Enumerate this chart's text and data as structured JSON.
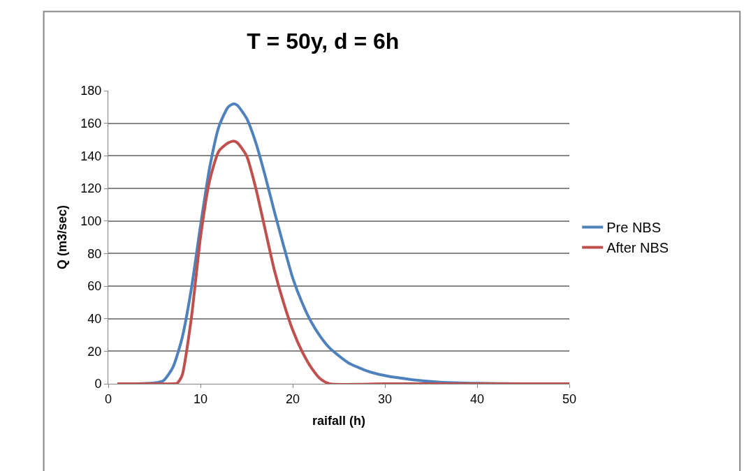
{
  "chart_data": {
    "type": "line",
    "title": "T = 50y, d = 6h",
    "xlabel": "raifall (h)",
    "ylabel": "Q (m3/sec)",
    "xlim": [
      0,
      50
    ],
    "xticks": [
      0,
      10,
      20,
      30,
      40,
      50
    ],
    "ylim": [
      0,
      180
    ],
    "yticks": [
      0,
      20,
      40,
      60,
      80,
      100,
      120,
      140,
      160,
      180
    ],
    "grid": "y",
    "legend": "right",
    "marker": "none",
    "line_style": "solid",
    "series": [
      {
        "name": "Pre NBS",
        "color": "#4f81bd",
        "x": [
          1,
          3,
          5,
          6,
          7,
          8,
          9,
          10,
          11,
          12,
          13,
          13.6,
          14,
          15,
          16,
          17,
          18,
          19,
          20,
          21,
          22,
          23,
          24,
          26,
          28,
          30,
          33,
          36,
          40,
          45,
          50
        ],
        "values": [
          0,
          0,
          0.5,
          2,
          10,
          28,
          58,
          97,
          133,
          158,
          170,
          172,
          171,
          163,
          148,
          128,
          106,
          85,
          65,
          50,
          38,
          29,
          22,
          13,
          8,
          5,
          2.5,
          1,
          0.3,
          0,
          0
        ]
      },
      {
        "name": "After NBS",
        "color": "#c0504d",
        "x": [
          1,
          5,
          7,
          7.5,
          8,
          9,
          10,
          11,
          12,
          13,
          13.6,
          14,
          15,
          16,
          17,
          18,
          19,
          20,
          21,
          22,
          23,
          24,
          30,
          40,
          50
        ],
        "values": [
          0,
          0,
          0,
          0.5,
          5,
          40,
          90,
          125,
          143,
          148,
          149,
          148,
          140,
          120,
          95,
          70,
          50,
          33,
          20,
          10,
          3,
          0,
          0,
          0,
          0
        ]
      }
    ]
  }
}
